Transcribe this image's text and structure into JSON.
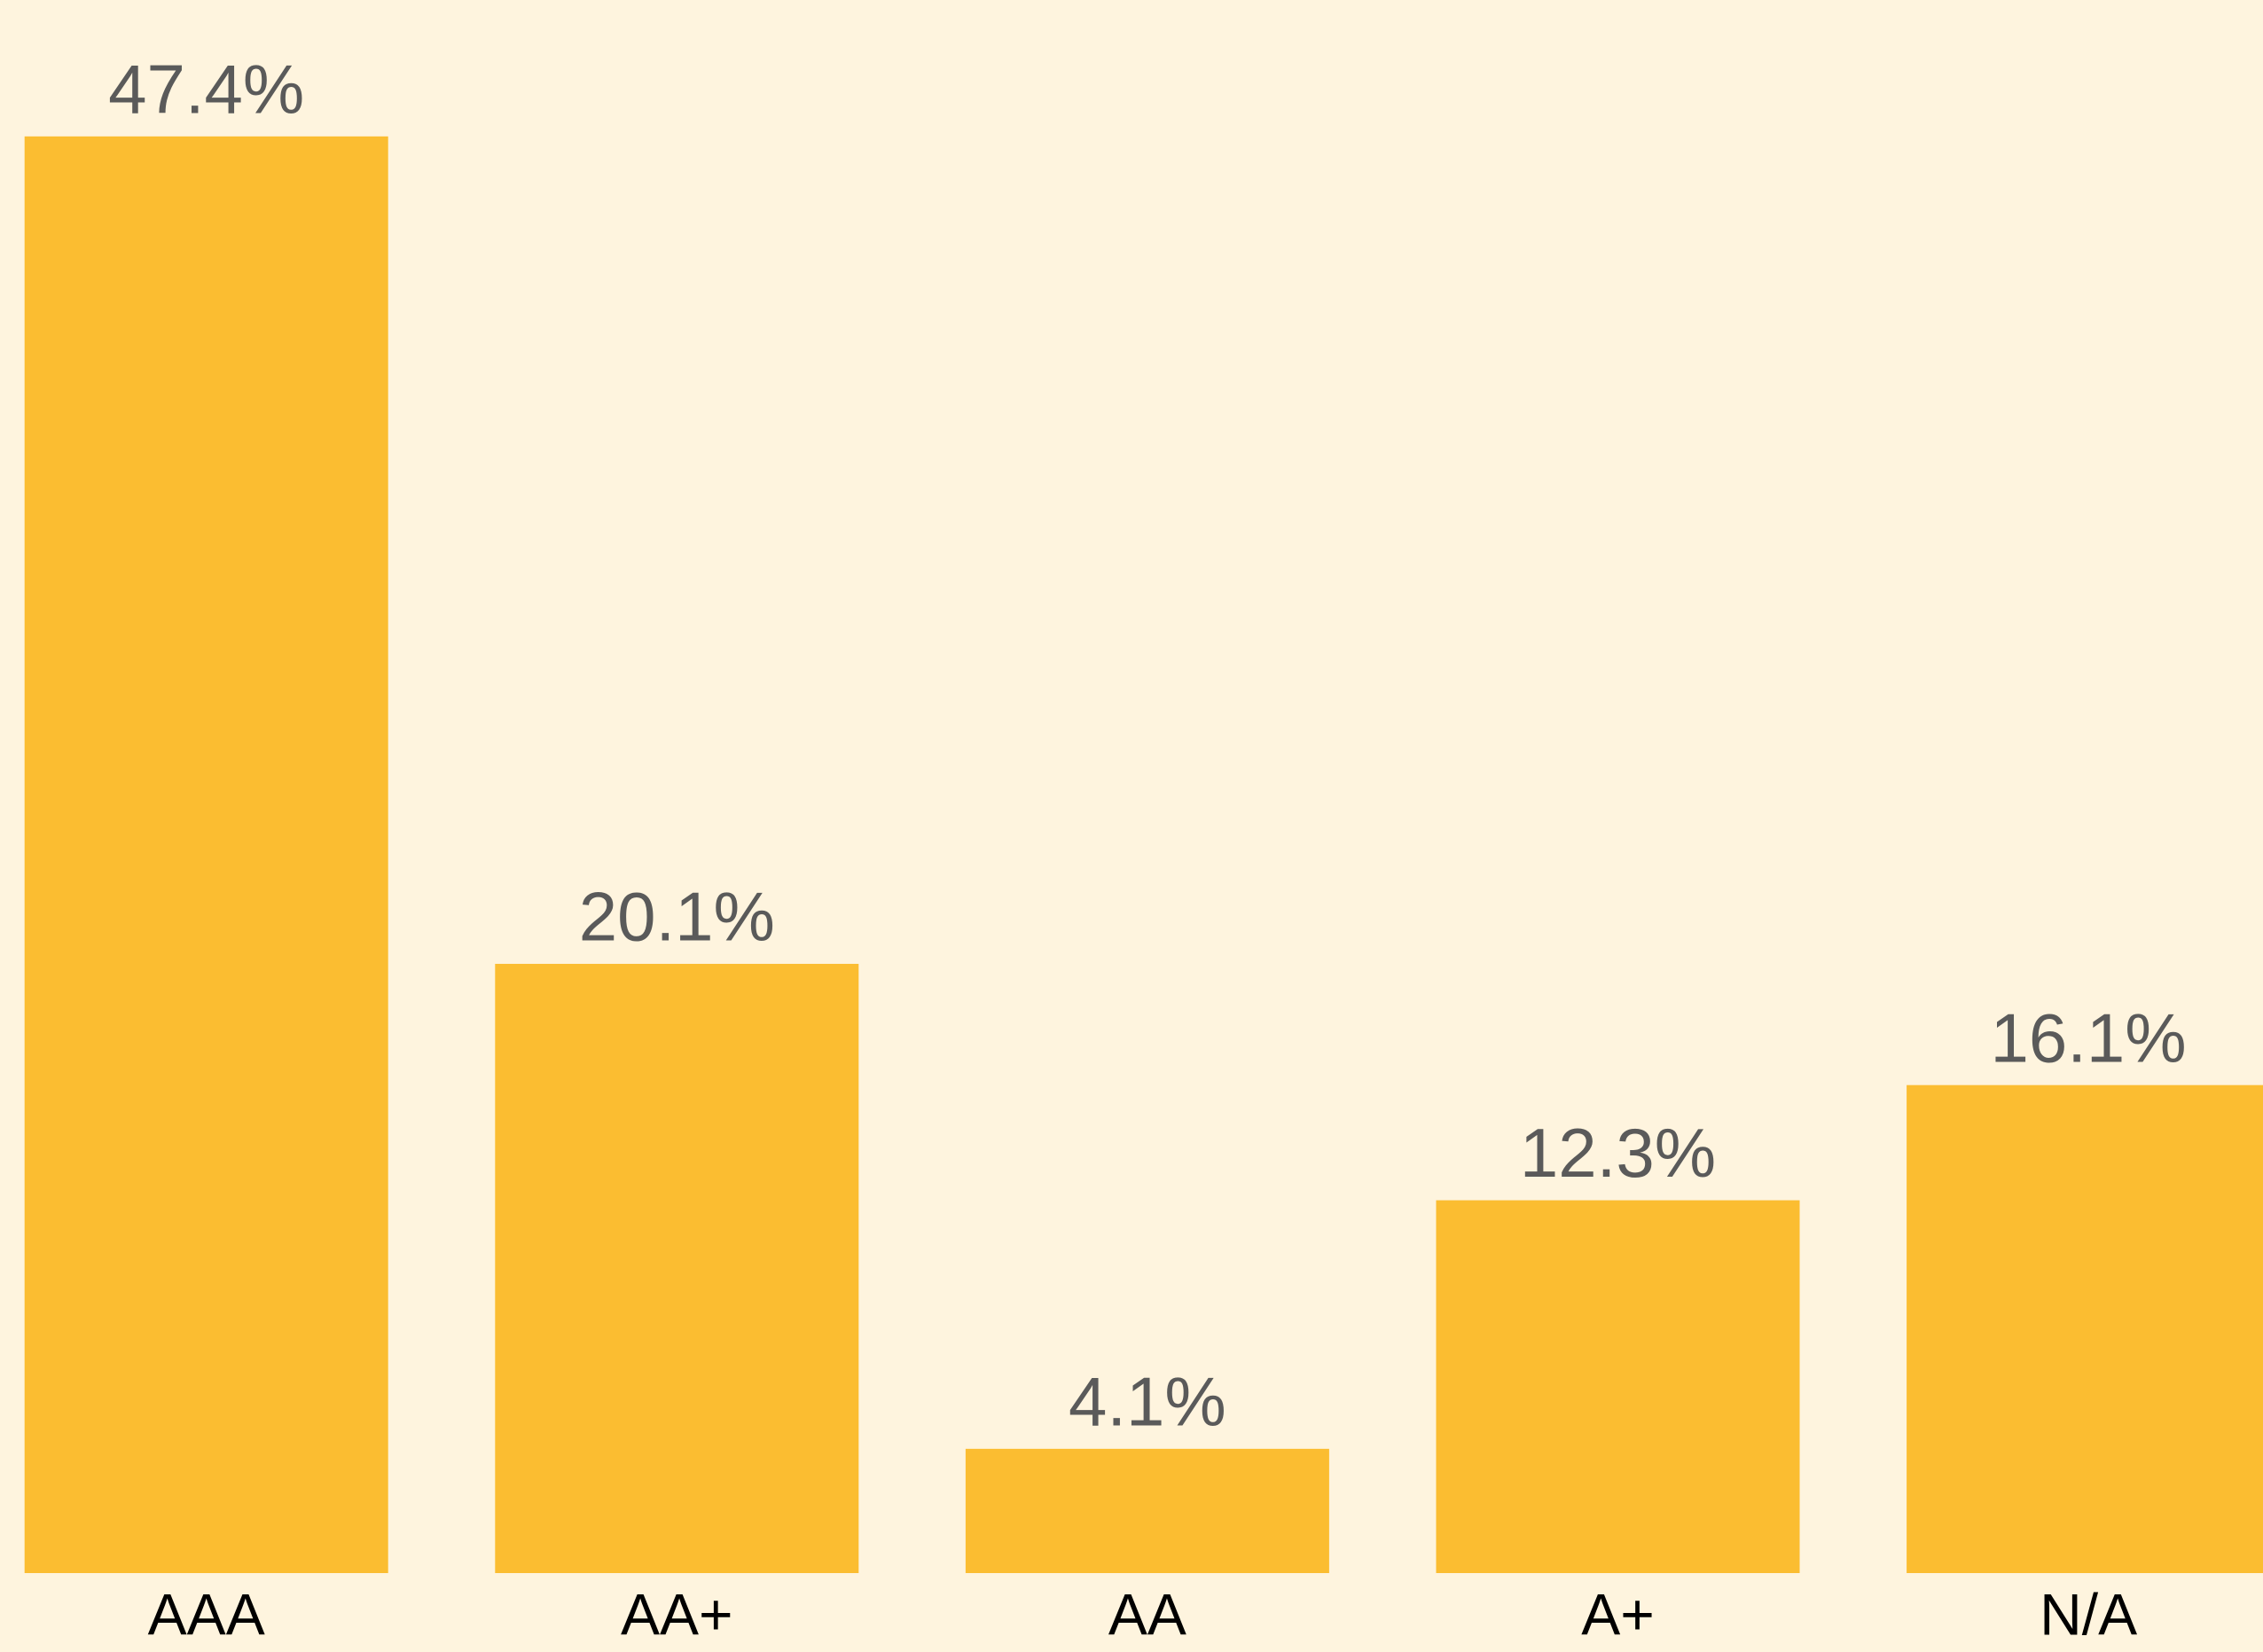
{
  "chart_data": {
    "type": "bar",
    "categories": [
      "AAA",
      "AA+",
      "AA",
      "A+",
      "N/A"
    ],
    "values": [
      47.4,
      20.1,
      4.1,
      12.3,
      16.1
    ],
    "value_labels": [
      "47.4%",
      "20.1%",
      "4.1%",
      "12.3%",
      "16.1%"
    ],
    "color": "#fbbd31",
    "ylim": [
      0,
      51.9
    ]
  }
}
